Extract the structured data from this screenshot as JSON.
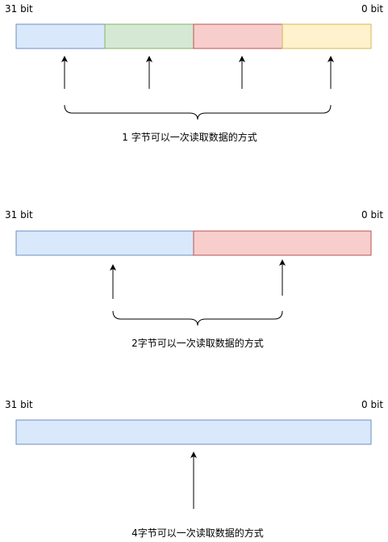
{
  "colors": {
    "blue_fill": "#dae8fc",
    "blue_stroke": "#6c8ebf",
    "green_fill": "#d5e8d4",
    "green_stroke": "#82b366",
    "red_fill": "#f8cecc",
    "red_stroke": "#b85450",
    "yellow_fill": "#fff2cc",
    "yellow_stroke": "#d6b656",
    "line": "#000000"
  },
  "sections": [
    {
      "msb_label": "31 bit",
      "lsb_label": "0 bit",
      "caption": "1 字节可以一次读取数据的方式",
      "segment_colors": [
        "blue",
        "green",
        "red",
        "yellow"
      ]
    },
    {
      "msb_label": "31 bit",
      "lsb_label": "0 bit",
      "caption": "2字节可以一次读取数据的方式",
      "segment_colors": [
        "blue",
        "red"
      ]
    },
    {
      "msb_label": "31 bit",
      "lsb_label": "0 bit",
      "caption": "4字节可以一次读取数据的方式",
      "segment_colors": [
        "blue"
      ]
    }
  ]
}
